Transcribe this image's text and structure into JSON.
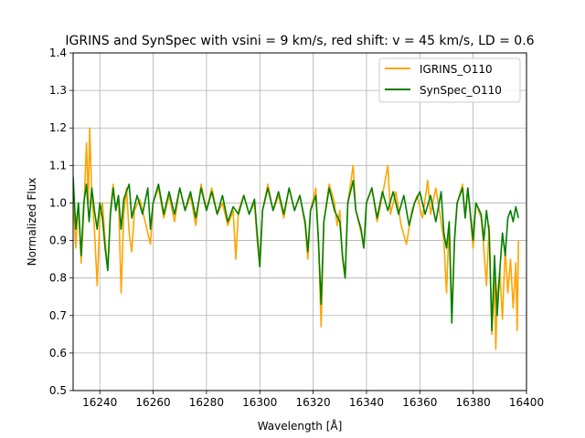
{
  "chart_data": {
    "type": "line",
    "title": "IGRINS and SynSpec with vsini = 9 km/s, red shift: v = 45 km/s, LD = 0.6",
    "xlabel": "Wavelength [Å]",
    "ylabel": "Normalized Flux",
    "xlim": [
      16230,
      16400
    ],
    "ylim": [
      0.5,
      1.4
    ],
    "xticks": [
      16240,
      16260,
      16280,
      16300,
      16320,
      16340,
      16360,
      16380,
      16400
    ],
    "yticks": [
      0.5,
      0.6,
      0.7,
      0.8,
      0.9,
      1.0,
      1.1,
      1.2,
      1.3,
      1.4
    ],
    "xtick_labels": [
      "16240",
      "16260",
      "16280",
      "16300",
      "16320",
      "16340",
      "16360",
      "16380",
      "16400"
    ],
    "ytick_labels": [
      "0.5",
      "0.6",
      "0.7",
      "0.8",
      "0.9",
      "1.0",
      "1.1",
      "1.2",
      "1.3",
      "1.4"
    ],
    "grid": true,
    "legend_position": "top-right",
    "series": [
      {
        "name": "IGRINS_O110",
        "color": "#ffa500",
        "points": [
          [
            16230,
            1.02
          ],
          [
            16231,
            0.88
          ],
          [
            16232,
            1.0
          ],
          [
            16233,
            0.84
          ],
          [
            16234,
            0.98
          ],
          [
            16235,
            1.16
          ],
          [
            16235.7,
            1.0
          ],
          [
            16236.2,
            1.2
          ],
          [
            16237,
            1.02
          ],
          [
            16238,
            0.93
          ],
          [
            16239,
            0.78
          ],
          [
            16240,
            0.96
          ],
          [
            16241,
            1.0
          ],
          [
            16242,
            0.9
          ],
          [
            16243,
            0.82
          ],
          [
            16244,
            0.98
          ],
          [
            16245,
            1.05
          ],
          [
            16246,
            0.98
          ],
          [
            16247,
            1.02
          ],
          [
            16248,
            0.76
          ],
          [
            16249,
            0.97
          ],
          [
            16250,
            1.04
          ],
          [
            16251,
            0.92
          ],
          [
            16252,
            0.87
          ],
          [
            16253,
            0.98
          ],
          [
            16255,
            1.01
          ],
          [
            16257,
            0.95
          ],
          [
            16259,
            0.89
          ],
          [
            16260,
            1.0
          ],
          [
            16262,
            1.04
          ],
          [
            16264,
            0.96
          ],
          [
            16266,
            1.02
          ],
          [
            16268,
            0.95
          ],
          [
            16270,
            1.04
          ],
          [
            16272,
            0.98
          ],
          [
            16274,
            1.02
          ],
          [
            16276,
            0.94
          ],
          [
            16278,
            1.05
          ],
          [
            16280,
            0.98
          ],
          [
            16282,
            1.04
          ],
          [
            16284,
            0.97
          ],
          [
            16286,
            1.0
          ],
          [
            16288,
            0.94
          ],
          [
            16290,
            0.98
          ],
          [
            16291,
            0.85
          ],
          [
            16292,
            0.98
          ],
          [
            16294,
            1.02
          ],
          [
            16296,
            0.97
          ],
          [
            16298,
            1.0
          ],
          [
            16299,
            0.9
          ],
          [
            16300,
            0.83
          ],
          [
            16301,
            0.98
          ],
          [
            16303,
            1.05
          ],
          [
            16305,
            0.98
          ],
          [
            16307,
            1.02
          ],
          [
            16309,
            0.96
          ],
          [
            16311,
            1.04
          ],
          [
            16313,
            0.98
          ],
          [
            16315,
            1.02
          ],
          [
            16317,
            0.94
          ],
          [
            16318,
            0.85
          ],
          [
            16319,
            0.98
          ],
          [
            16321,
            1.04
          ],
          [
            16322,
            0.9
          ],
          [
            16323,
            0.67
          ],
          [
            16324,
            0.95
          ],
          [
            16326,
            1.05
          ],
          [
            16328,
            1.0
          ],
          [
            16329,
            0.94
          ],
          [
            16330,
            0.98
          ],
          [
            16331,
            0.85
          ],
          [
            16332,
            0.8
          ],
          [
            16333,
            1.0
          ],
          [
            16335,
            1.1
          ],
          [
            16336,
            0.98
          ],
          [
            16338,
            0.92
          ],
          [
            16339,
            0.88
          ],
          [
            16340,
            1.0
          ],
          [
            16342,
            1.04
          ],
          [
            16344,
            0.95
          ],
          [
            16346,
            1.02
          ],
          [
            16348,
            1.1
          ],
          [
            16349,
            0.97
          ],
          [
            16351,
            1.03
          ],
          [
            16353,
            0.94
          ],
          [
            16355,
            0.89
          ],
          [
            16357,
            0.98
          ],
          [
            16359,
            1.02
          ],
          [
            16361,
            0.96
          ],
          [
            16363,
            1.06
          ],
          [
            16364,
            0.97
          ],
          [
            16366,
            1.04
          ],
          [
            16368,
            0.95
          ],
          [
            16369,
            0.9
          ],
          [
            16370,
            0.76
          ],
          [
            16371,
            0.95
          ],
          [
            16372,
            0.7
          ],
          [
            16373,
            0.9
          ],
          [
            16374,
            1.0
          ],
          [
            16376,
            1.05
          ],
          [
            16377,
            0.96
          ],
          [
            16378,
            1.04
          ],
          [
            16380,
            0.88
          ],
          [
            16381,
            1.0
          ],
          [
            16383,
            0.96
          ],
          [
            16384,
            0.88
          ],
          [
            16385,
            0.78
          ],
          [
            16386,
            0.94
          ],
          [
            16387,
            0.65
          ],
          [
            16388,
            0.8
          ],
          [
            16388.5,
            0.61
          ],
          [
            16389,
            0.75
          ],
          [
            16390,
            0.82
          ],
          [
            16391,
            0.69
          ],
          [
            16392,
            0.88
          ],
          [
            16393,
            0.76
          ],
          [
            16394,
            0.85
          ],
          [
            16395,
            0.72
          ],
          [
            16396,
            0.84
          ],
          [
            16396.5,
            0.66
          ],
          [
            16397,
            0.9
          ]
        ]
      },
      {
        "name": "SynSpec_O110",
        "color": "#008000",
        "points": [
          [
            16230,
            1.07
          ],
          [
            16231,
            0.93
          ],
          [
            16232,
            1.0
          ],
          [
            16233,
            0.86
          ],
          [
            16234,
            1.0
          ],
          [
            16235,
            1.05
          ],
          [
            16236,
            0.95
          ],
          [
            16237,
            1.04
          ],
          [
            16238,
            0.98
          ],
          [
            16239,
            0.93
          ],
          [
            16240,
            1.0
          ],
          [
            16241,
            0.96
          ],
          [
            16242,
            0.88
          ],
          [
            16243,
            0.82
          ],
          [
            16244,
            0.97
          ],
          [
            16245,
            1.04
          ],
          [
            16246,
            0.98
          ],
          [
            16247,
            1.02
          ],
          [
            16248,
            0.93
          ],
          [
            16249,
            1.01
          ],
          [
            16251,
            1.05
          ],
          [
            16252,
            0.96
          ],
          [
            16254,
            1.02
          ],
          [
            16256,
            0.97
          ],
          [
            16258,
            1.04
          ],
          [
            16259,
            0.93
          ],
          [
            16260,
            1.0
          ],
          [
            16262,
            1.05
          ],
          [
            16264,
            0.97
          ],
          [
            16266,
            1.03
          ],
          [
            16268,
            0.97
          ],
          [
            16270,
            1.04
          ],
          [
            16272,
            0.98
          ],
          [
            16274,
            1.03
          ],
          [
            16276,
            0.96
          ],
          [
            16278,
            1.04
          ],
          [
            16280,
            0.98
          ],
          [
            16282,
            1.03
          ],
          [
            16284,
            0.97
          ],
          [
            16286,
            1.02
          ],
          [
            16288,
            0.95
          ],
          [
            16290,
            0.99
          ],
          [
            16292,
            0.97
          ],
          [
            16294,
            1.02
          ],
          [
            16296,
            0.97
          ],
          [
            16298,
            1.01
          ],
          [
            16299,
            0.92
          ],
          [
            16300,
            0.83
          ],
          [
            16301,
            0.98
          ],
          [
            16303,
            1.04
          ],
          [
            16305,
            0.98
          ],
          [
            16307,
            1.03
          ],
          [
            16309,
            0.97
          ],
          [
            16311,
            1.04
          ],
          [
            16313,
            0.98
          ],
          [
            16315,
            1.02
          ],
          [
            16317,
            0.95
          ],
          [
            16318,
            0.87
          ],
          [
            16319,
            0.98
          ],
          [
            16321,
            1.02
          ],
          [
            16322,
            0.9
          ],
          [
            16323,
            0.73
          ],
          [
            16324,
            0.95
          ],
          [
            16326,
            1.04
          ],
          [
            16328,
            0.98
          ],
          [
            16330,
            0.95
          ],
          [
            16331,
            0.86
          ],
          [
            16332,
            0.8
          ],
          [
            16333,
            1.0
          ],
          [
            16335,
            1.06
          ],
          [
            16336,
            0.98
          ],
          [
            16338,
            0.93
          ],
          [
            16339,
            0.88
          ],
          [
            16340,
            1.0
          ],
          [
            16342,
            1.04
          ],
          [
            16344,
            0.96
          ],
          [
            16346,
            1.03
          ],
          [
            16348,
            0.98
          ],
          [
            16350,
            1.03
          ],
          [
            16352,
            0.97
          ],
          [
            16354,
            1.02
          ],
          [
            16356,
            0.94
          ],
          [
            16358,
            1.0
          ],
          [
            16360,
            1.03
          ],
          [
            16362,
            0.97
          ],
          [
            16364,
            1.02
          ],
          [
            16366,
            0.95
          ],
          [
            16368,
            1.03
          ],
          [
            16369,
            0.92
          ],
          [
            16370,
            0.88
          ],
          [
            16371,
            0.95
          ],
          [
            16372,
            0.68
          ],
          [
            16373,
            0.9
          ],
          [
            16374,
            1.0
          ],
          [
            16376,
            1.04
          ],
          [
            16377,
            0.96
          ],
          [
            16378,
            1.04
          ],
          [
            16380,
            0.9
          ],
          [
            16381,
            1.0
          ],
          [
            16383,
            0.97
          ],
          [
            16384,
            0.9
          ],
          [
            16385,
            0.98
          ],
          [
            16386,
            0.92
          ],
          [
            16387,
            0.66
          ],
          [
            16388,
            0.86
          ],
          [
            16389,
            0.7
          ],
          [
            16390,
            0.82
          ],
          [
            16391,
            0.92
          ],
          [
            16392,
            0.86
          ],
          [
            16393,
            0.96
          ],
          [
            16394,
            0.98
          ],
          [
            16395,
            0.95
          ],
          [
            16396,
            0.99
          ],
          [
            16397,
            0.96
          ]
        ]
      }
    ]
  }
}
